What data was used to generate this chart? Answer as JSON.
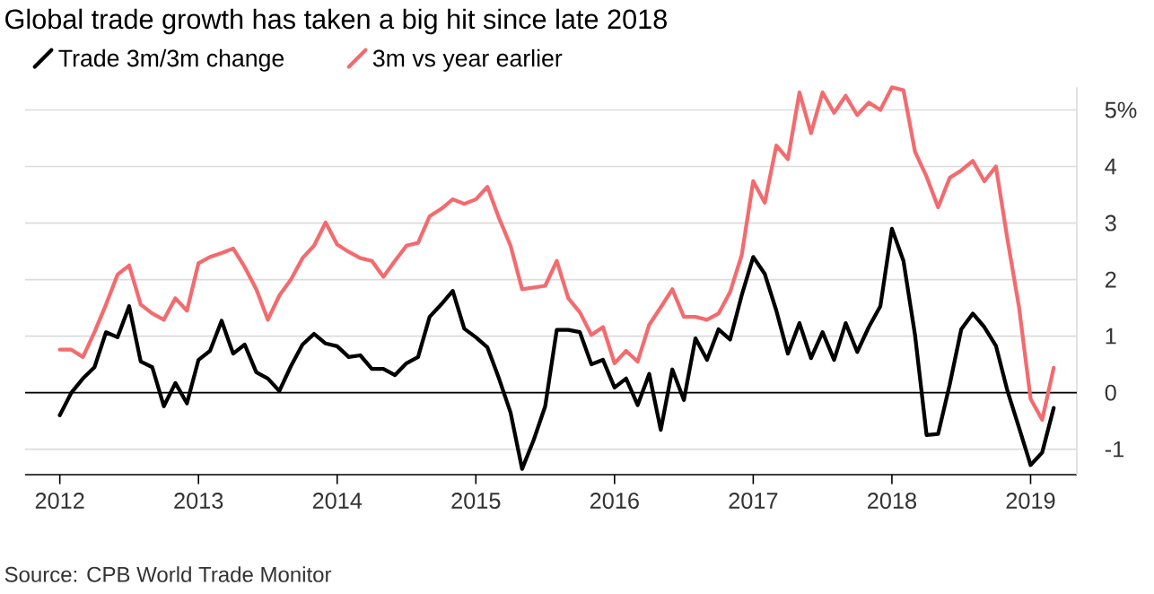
{
  "chart_data": {
    "type": "line",
    "title": "Global trade growth has taken a big hit since late 2018",
    "x": [
      "2012-01",
      "2012-02",
      "2012-03",
      "2012-04",
      "2012-05",
      "2012-06",
      "2012-07",
      "2012-08",
      "2012-09",
      "2012-10",
      "2012-11",
      "2012-12",
      "2013-01",
      "2013-02",
      "2013-03",
      "2013-04",
      "2013-05",
      "2013-06",
      "2013-07",
      "2013-08",
      "2013-09",
      "2013-10",
      "2013-11",
      "2013-12",
      "2014-01",
      "2014-02",
      "2014-03",
      "2014-04",
      "2014-05",
      "2014-06",
      "2014-07",
      "2014-08",
      "2014-09",
      "2014-10",
      "2014-11",
      "2014-12",
      "2015-01",
      "2015-02",
      "2015-03",
      "2015-04",
      "2015-05",
      "2015-06",
      "2015-07",
      "2015-08",
      "2015-09",
      "2015-10",
      "2015-11",
      "2015-12",
      "2016-01",
      "2016-02",
      "2016-03",
      "2016-04",
      "2016-05",
      "2016-06",
      "2016-07",
      "2016-08",
      "2016-09",
      "2016-10",
      "2016-11",
      "2016-12",
      "2017-01",
      "2017-02",
      "2017-03",
      "2017-04",
      "2017-05",
      "2017-06",
      "2017-07",
      "2017-08",
      "2017-09",
      "2017-10",
      "2017-11",
      "2017-12",
      "2018-01",
      "2018-02",
      "2018-03",
      "2018-04",
      "2018-05",
      "2018-06",
      "2018-07",
      "2018-08",
      "2018-09",
      "2018-10",
      "2018-11",
      "2018-12",
      "2019-01",
      "2019-02",
      "2019-03"
    ],
    "series": [
      {
        "name": "Trade 3m/3m change",
        "color": "#000000",
        "values": [
          -0.4,
          0,
          0.25,
          0.45,
          1.07,
          0.98,
          1.53,
          0.55,
          0.45,
          -0.24,
          0.17,
          -0.19,
          0.58,
          0.74,
          1.27,
          0.69,
          0.85,
          0.36,
          0.25,
          0.03,
          0.47,
          0.85,
          1.04,
          0.87,
          0.82,
          0.63,
          0.66,
          0.42,
          0.42,
          0.31,
          0.52,
          0.63,
          1.34,
          1.56,
          1.8,
          1.13,
          0.98,
          0.8,
          0.25,
          -0.35,
          -1.35,
          -0.84,
          -0.24,
          1.11,
          1.11,
          1.07,
          0.5,
          0.58,
          0.09,
          0.25,
          -0.22,
          0.33,
          -0.66,
          0.41,
          -0.13,
          0.96,
          0.58,
          1.12,
          0.94,
          1.72,
          2.4,
          2.1,
          1.45,
          0.69,
          1.23,
          0.61,
          1.07,
          0.58,
          1.23,
          0.72,
          1.16,
          1.53,
          2.9,
          2.33,
          1.02,
          -0.75,
          -0.73,
          0.14,
          1.12,
          1.4,
          1.16,
          0.83,
          0.03,
          -0.62,
          -1.28,
          -1.06,
          -0.27
        ]
      },
      {
        "name": "3m vs year earlier",
        "color": "#f36b6f",
        "values": [
          0.76,
          0.76,
          0.63,
          1.07,
          1.56,
          2.09,
          2.25,
          1.56,
          1.4,
          1.29,
          1.67,
          1.45,
          2.29,
          2.4,
          2.47,
          2.55,
          2.22,
          1.83,
          1.29,
          1.72,
          2.0,
          2.38,
          2.6,
          3.01,
          2.62,
          2.49,
          2.38,
          2.33,
          2.05,
          2.33,
          2.6,
          2.65,
          3.12,
          3.25,
          3.42,
          3.34,
          3.42,
          3.64,
          3.09,
          2.6,
          1.83,
          1.86,
          1.89,
          2.33,
          1.67,
          1.42,
          1.02,
          1.16,
          0.52,
          0.74,
          0.55,
          1.2,
          1.51,
          1.83,
          1.34,
          1.34,
          1.29,
          1.4,
          1.78,
          2.43,
          3.74,
          3.36,
          4.37,
          4.13,
          5.31,
          4.59,
          5.31,
          4.95,
          5.25,
          4.91,
          5.13,
          5.0,
          5.4,
          5.35,
          4.26,
          3.82,
          3.28,
          3.8,
          3.93,
          4.1,
          3.74,
          4.0,
          2.71,
          1.51,
          -0.11,
          -0.48,
          0.44
        ]
      }
    ],
    "xlim": [
      "2011-10",
      "2019-05"
    ],
    "ylim": [
      -1.45,
      5.4
    ],
    "xticks": [
      "2012",
      "2013",
      "2014",
      "2015",
      "2016",
      "2017",
      "2018",
      "2019"
    ],
    "yticks": [
      -1,
      0,
      1,
      2,
      3,
      4,
      {
        "value": 5,
        "label": "5%"
      }
    ],
    "grid": "y",
    "legend": "top left",
    "ref_lines": [
      {
        "axis": "y",
        "value": 0,
        "color": "#000000"
      }
    ],
    "annotations": [
      "Source: CPB World Trade Monitor"
    ]
  }
}
